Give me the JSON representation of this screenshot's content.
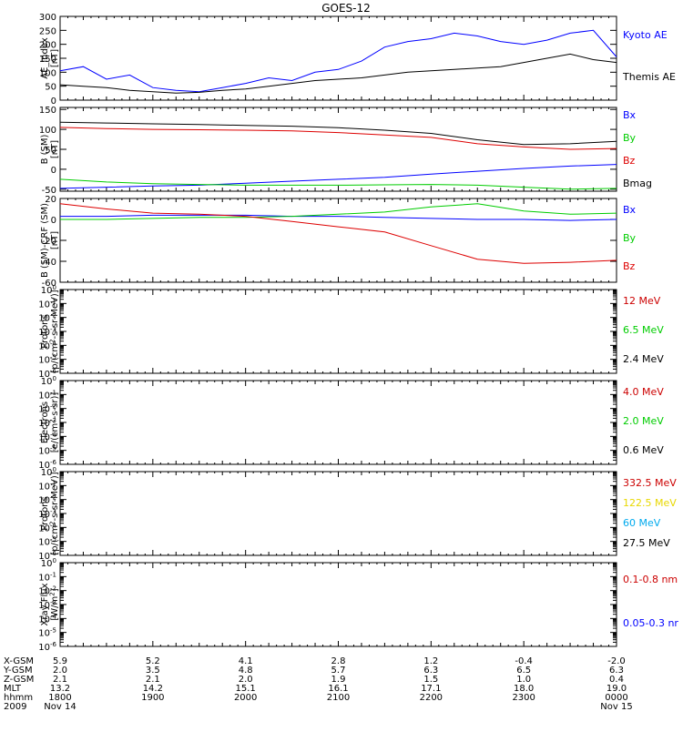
{
  "title": "GOES-12",
  "colors": {
    "black": "#000000",
    "blue": "#0000ff",
    "red": "#dd0000",
    "green": "#00cc00",
    "darkred": "#cc0000",
    "yellow": "#e8d800",
    "cyan": "#00aaee"
  },
  "chart_data": [
    {
      "type": "line",
      "ylabel": [
        "AE_index",
        "[nT]"
      ],
      "ylim": [
        0,
        300
      ],
      "yticks": [
        "0",
        "50",
        "100",
        "150",
        "200",
        "250",
        "300"
      ],
      "legend": [
        {
          "name": "Kyoto AE",
          "color": "blue"
        },
        {
          "name": "Themis AE",
          "color": "black"
        }
      ],
      "x_hours": [
        0,
        0.25,
        0.5,
        0.75,
        1,
        1.25,
        1.5,
        1.75,
        2,
        2.25,
        2.5,
        2.75,
        3,
        3.25,
        3.5,
        3.75,
        4,
        4.25,
        4.5,
        4.75,
        5,
        5.25,
        5.5,
        5.75,
        6
      ],
      "series": [
        {
          "name": "Kyoto AE",
          "color": "blue",
          "values": [
            105,
            120,
            75,
            90,
            45,
            35,
            30,
            45,
            60,
            80,
            70,
            100,
            110,
            140,
            190,
            210,
            220,
            240,
            230,
            210,
            200,
            215,
            240,
            250,
            155
          ]
        },
        {
          "name": "Themis AE",
          "color": "black",
          "values": [
            55,
            50,
            45,
            35,
            30,
            25,
            28,
            35,
            40,
            50,
            60,
            70,
            75,
            80,
            90,
            100,
            105,
            110,
            115,
            120,
            135,
            150,
            165,
            145,
            135
          ]
        }
      ]
    },
    {
      "type": "line",
      "ylabel": [
        "B (SM)",
        "[nT]"
      ],
      "ylim": [
        -55,
        155
      ],
      "yticks": [
        "-50",
        "0",
        "50",
        "100",
        "150"
      ],
      "legend": [
        {
          "name": "Bx",
          "color": "blue"
        },
        {
          "name": "By",
          "color": "green"
        },
        {
          "name": "Bz",
          "color": "red"
        },
        {
          "name": "Bmag",
          "color": "black"
        }
      ],
      "x_hours": [
        0,
        0.5,
        1,
        1.5,
        2,
        2.5,
        3,
        3.5,
        4,
        4.5,
        5,
        5.5,
        6
      ],
      "series": [
        {
          "name": "Bx",
          "color": "blue",
          "values": [
            -48,
            -45,
            -42,
            -40,
            -35,
            -30,
            -25,
            -20,
            -12,
            -5,
            2,
            8,
            12
          ]
        },
        {
          "name": "By",
          "color": "green",
          "values": [
            -25,
            -32,
            -36,
            -38,
            -40,
            -40,
            -40,
            -39,
            -38,
            -40,
            -45,
            -50,
            -48
          ]
        },
        {
          "name": "Bz",
          "color": "red",
          "values": [
            105,
            102,
            100,
            99,
            98,
            96,
            92,
            86,
            80,
            64,
            56,
            50,
            52
          ]
        },
        {
          "name": "Bmag",
          "color": "black",
          "values": [
            118,
            116,
            114,
            112,
            110,
            108,
            104,
            98,
            90,
            74,
            62,
            64,
            70
          ]
        }
      ]
    },
    {
      "type": "line",
      "ylabel": [
        "B (SM)-CRF (SM)",
        "[nT]"
      ],
      "ylim": [
        -60,
        20
      ],
      "yticks": [
        "-60",
        "-40",
        "-20",
        "0",
        "20"
      ],
      "legend": [
        {
          "name": "Bx",
          "color": "blue"
        },
        {
          "name": "By",
          "color": "green"
        },
        {
          "name": "Bz",
          "color": "red"
        }
      ],
      "x_hours": [
        0,
        0.5,
        1,
        1.5,
        2,
        2.5,
        3,
        3.5,
        4,
        4.5,
        5,
        5.5,
        6
      ],
      "series": [
        {
          "name": "Bx",
          "color": "blue",
          "values": [
            3,
            3,
            4,
            4,
            4,
            3,
            3,
            2,
            1,
            0,
            0,
            -1,
            0
          ]
        },
        {
          "name": "By",
          "color": "green",
          "values": [
            0,
            0,
            1,
            2,
            2,
            3,
            5,
            7,
            12,
            15,
            8,
            5,
            6
          ]
        },
        {
          "name": "Bz",
          "color": "red",
          "values": [
            15,
            10,
            6,
            5,
            3,
            -2,
            -7,
            -12,
            -25,
            -38,
            -42,
            -41,
            -39
          ]
        }
      ]
    },
    {
      "type": "line",
      "ylabel": [
        "Protons",
        "[p/(cm²-s-sr-MeV)]"
      ],
      "log": true,
      "ylim_exp": [
        -6,
        0
      ],
      "legend": [
        {
          "name": "12 MeV",
          "color": "darkred"
        },
        {
          "name": "6.5 MeV",
          "color": "green"
        },
        {
          "name": "2.4 MeV",
          "color": "black"
        }
      ],
      "series": []
    },
    {
      "type": "line",
      "ylabel": [
        "Electrons",
        "[e/(cm²-s-sr)]"
      ],
      "log": true,
      "ylim_exp": [
        -6,
        0
      ],
      "legend": [
        {
          "name": "4.0 MeV",
          "color": "darkred"
        },
        {
          "name": "2.0 MeV",
          "color": "green"
        },
        {
          "name": "0.6 MeV",
          "color": "black"
        }
      ],
      "series": []
    },
    {
      "type": "line",
      "ylabel": [
        "Protons",
        "[p/(cm²-s-sr-MeV)]"
      ],
      "log": true,
      "ylim_exp": [
        -6,
        0
      ],
      "legend": [
        {
          "name": "332.5 MeV",
          "color": "darkred"
        },
        {
          "name": "122.5 MeV",
          "color": "yellow"
        },
        {
          "name": "60 MeV",
          "color": "cyan"
        },
        {
          "name": "27.5 MeV",
          "color": "black"
        }
      ],
      "series": []
    },
    {
      "type": "line",
      "ylabel": [
        "Xray Flux",
        "[W/m²]"
      ],
      "log": true,
      "ylim_exp": [
        -6,
        0
      ],
      "legend": [
        {
          "name": "0.1-0.8 nm",
          "color": "darkred"
        },
        {
          "name": "0.05-0.3 nr",
          "color": "blue"
        }
      ],
      "series": []
    }
  ],
  "xaxis": {
    "row_labels": [
      "X-GSM",
      "Y-GSM",
      "Z-GSM",
      "MLT",
      "hhmm",
      "2009"
    ],
    "columns": [
      [
        "5.9",
        "2.0",
        "2.1",
        "13.2",
        "1800",
        "Nov 14"
      ],
      [
        "5.2",
        "3.5",
        "2.1",
        "14.2",
        "1900",
        ""
      ],
      [
        "4.1",
        "4.8",
        "2.0",
        "15.1",
        "2000",
        ""
      ],
      [
        "2.8",
        "5.7",
        "1.9",
        "16.1",
        "2100",
        ""
      ],
      [
        "1.2",
        "6.3",
        "1.5",
        "17.1",
        "2200",
        ""
      ],
      [
        "-0.4",
        "6.5",
        "1.0",
        "18.0",
        "2300",
        ""
      ],
      [
        "-2.0",
        "6.3",
        "0.4",
        "19.0",
        "0000",
        "Nov 15"
      ]
    ]
  }
}
